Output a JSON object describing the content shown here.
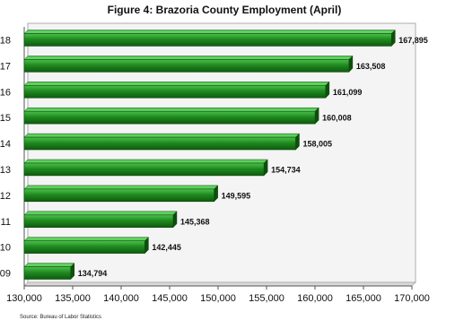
{
  "chart_data": {
    "type": "bar",
    "orientation": "horizontal",
    "title": "Figure 4: Brazoria County Employment (April)",
    "categories": [
      "09",
      "10",
      "11",
      "12",
      "13",
      "14",
      "15",
      "16",
      "17",
      "18"
    ],
    "values": [
      134794,
      142445,
      145368,
      149595,
      154734,
      158005,
      160008,
      161099,
      163508,
      167895
    ],
    "value_labels": [
      "134,794",
      "142,445",
      "145,368",
      "149,595",
      "154,734",
      "158,005",
      "160,008",
      "161,099",
      "163,508",
      "167,895"
    ],
    "x_ticks": [
      130000,
      135000,
      140000,
      145000,
      150000,
      155000,
      160000,
      165000,
      170000
    ],
    "x_tick_labels": [
      "130,000",
      "135,000",
      "140,000",
      "145,000",
      "150,000",
      "155,000",
      "160,000",
      "165,000",
      "170,000"
    ],
    "xlim": [
      130000,
      170000
    ],
    "xlabel": "",
    "ylabel": "",
    "grid": false,
    "legend": "none",
    "colors": {
      "bar": "#1f8a1f",
      "bar_dark": "#0f5a0f",
      "bar_light": "#4cc24c",
      "axis": "#555555"
    },
    "source": "Source: Bureau of Labor Statistics"
  }
}
